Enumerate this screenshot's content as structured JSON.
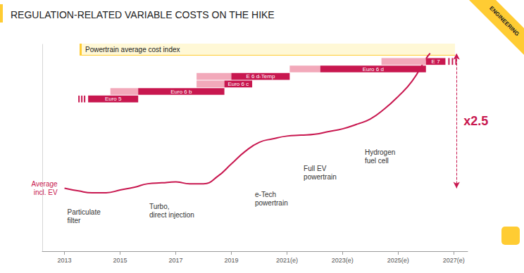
{
  "chart_data": {
    "type": "line",
    "title": "REGULATION-RELATED VARIABLE COSTS ON THE HIKE",
    "subtitle": "Powertrain average cost index",
    "corner_label": "ENGINEERING",
    "x": [
      2013,
      2013.5,
      2014,
      2014.5,
      2015,
      2015.5,
      2016,
      2016.5,
      2017,
      2017.5,
      2018,
      2018.5,
      2019,
      2019.5,
      2020,
      2020.5,
      2021,
      2021.5,
      2022,
      2022.5,
      2023,
      2023.5,
      2024,
      2024.5,
      2025,
      2025.5,
      2026,
      2026.15
    ],
    "series": [
      {
        "name": "Average\nincl. EV",
        "color": "#c8174f",
        "values": [
          1.0,
          0.97,
          0.95,
          0.95,
          0.98,
          1.01,
          1.05,
          1.06,
          1.07,
          1.05,
          1.05,
          1.13,
          1.27,
          1.41,
          1.51,
          1.55,
          1.58,
          1.59,
          1.6,
          1.63,
          1.66,
          1.71,
          1.77,
          1.88,
          2.02,
          2.19,
          2.44,
          2.5
        ]
      }
    ],
    "xlim": [
      2012.2,
      2027.5
    ],
    "xticks": [
      2013,
      2015,
      2017,
      2019,
      {
        "value": 2021,
        "label": "2021(e)"
      },
      {
        "value": 2023,
        "label": "2023(e)"
      },
      {
        "value": 2025,
        "label": "2025(e)"
      },
      {
        "value": 2027,
        "label": "2027(e)"
      }
    ],
    "ylim": [
      0.3,
      2.6
    ],
    "yticks": [],
    "tick_labels": "x",
    "grid": false,
    "regulations": [
      {
        "label": "Euro 5",
        "phase_in": null,
        "in_force": [
          2013.85,
          2015.65
        ]
      },
      {
        "label": "Euro 6 b",
        "phase_in": [
          2014.65,
          2015.65
        ],
        "in_force": [
          2015.65,
          2018.75
        ]
      },
      {
        "label": "Euro 6 c",
        "phase_in": [
          2017.75,
          2018.75
        ],
        "in_force": [
          2018.75,
          2019.75
        ]
      },
      {
        "label": "E 6 d-Temp",
        "phase_in": [
          2017.75,
          2019.0
        ],
        "in_force": [
          2019.0,
          2021.1
        ]
      },
      {
        "label": "Euro 6 d",
        "phase_in": [
          2021.1,
          2022.2
        ],
        "in_force": [
          2022.2,
          2026.0
        ]
      },
      {
        "label": "E 7",
        "phase_in": [
          2024.4,
          2026.0
        ],
        "in_force": [
          2026.0,
          2026.7
        ]
      }
    ],
    "annotations": [
      {
        "text": "Particulate\nfilter",
        "x": 2013.1,
        "y": 0.78
      },
      {
        "text": "Turbo,\ndirect injection",
        "x": 2016.05,
        "y": 0.84
      },
      {
        "text": "e-Tech\npowertrain",
        "x": 2019.85,
        "y": 0.98
      },
      {
        "text": "Full EV\npowertrain",
        "x": 2021.6,
        "y": 1.27
      },
      {
        "text": "Hydrogen\nfuel cell",
        "x": 2023.8,
        "y": 1.45
      }
    ],
    "ratio": {
      "text": "x2.5",
      "x": 2027.1,
      "from": 1.0,
      "to": 2.5
    }
  }
}
